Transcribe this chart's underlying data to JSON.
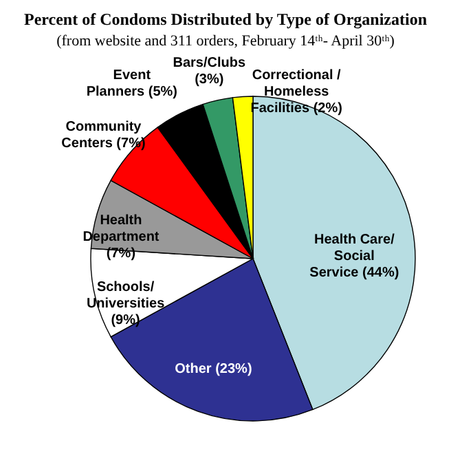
{
  "chart_data": {
    "type": "pie",
    "title": "Percent of Condoms Distributed by Type of Organization",
    "subtitle": "(from website and 311 orders, February 14ᵗʰ- April 30ᵗʰ)",
    "categories": [
      "Health Care/\nSocial\nService",
      "Other",
      "Schools/\nUniversities\n",
      "Health\nDepartment\n",
      "Community\nCenters",
      "Event\nPlanners",
      "Bars/Clubs\n",
      "Correctional /\nHomeless\nFacilities"
    ],
    "values": [
      44,
      23,
      9,
      7,
      7,
      5,
      3,
      2
    ],
    "value_labels": [
      "(44%)",
      "(23%)",
      "(9%)",
      "(7%)",
      "(7%)",
      "(5%)",
      "(3%)",
      "(2%)"
    ],
    "colors": [
      "#b7dde2",
      "#2e3192",
      "#ffffff",
      "#999999",
      "#ff0000",
      "#000000",
      "#339966",
      "#ffff00"
    ]
  }
}
